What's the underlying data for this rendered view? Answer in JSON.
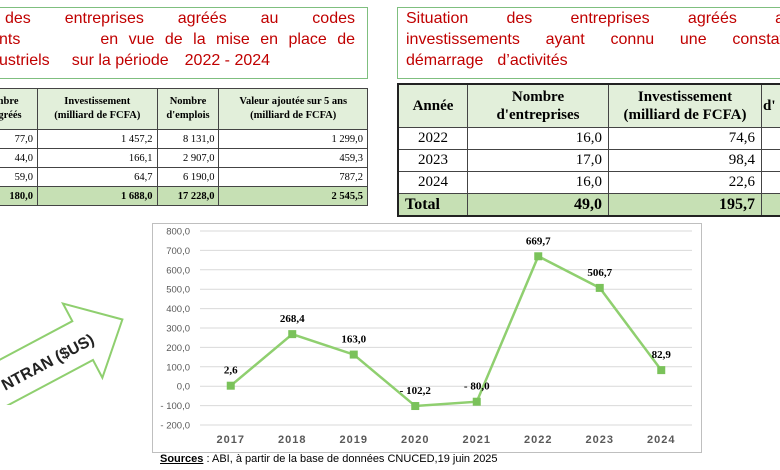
{
  "left_box": {
    "lines": [
      [
        "des",
        "entreprises",
        "agréés",
        "au",
        "codes"
      ],
      [
        "nts",
        "en vue de la mise en place de"
      ],
      [
        "ustriels",
        "sur la période",
        "2022 - 2024"
      ]
    ]
  },
  "right_box": {
    "lines": [
      [
        "Situation",
        "des",
        "entreprises",
        "agréés",
        "a"
      ],
      [
        "investissements",
        "ayant",
        "connu",
        "une",
        "constat"
      ],
      [
        "démarrage",
        "d’activités"
      ]
    ]
  },
  "left_table": {
    "headers": [
      "ombre\ns agréés",
      "Investissement\n(milliard de FCFA)",
      "Nombre\nd'emplois",
      "Valeur ajoutée sur 5 ans\n(milliard de FCFA)"
    ],
    "rows": [
      [
        "77,0",
        "1 457,2",
        "8 131,0",
        "1 299,0"
      ],
      [
        "44,0",
        "166,1",
        "2 907,0",
        "459,3"
      ],
      [
        "59,0",
        "64,7",
        "6 190,0",
        "787,2"
      ]
    ],
    "total": [
      "180,0",
      "1 688,0",
      "17 228,0",
      "2 545,5"
    ]
  },
  "right_table": {
    "headers": [
      "Année",
      "Nombre\nd'entreprises",
      "Investissement\n(milliard de FCFA)",
      "d'"
    ],
    "rows": [
      [
        "2022",
        "16,0",
        "74,6",
        ""
      ],
      [
        "2023",
        "17,0",
        "98,4",
        ""
      ],
      [
        "2024",
        "16,0",
        "22,6",
        ""
      ]
    ],
    "total": [
      "Total",
      "49,0",
      "195,7",
      ""
    ]
  },
  "arrow_text": "NTRAN ($US)",
  "chart_data": {
    "type": "line",
    "categories": [
      "2017",
      "2018",
      "2019",
      "2020",
      "2021",
      "2022",
      "2023",
      "2024"
    ],
    "values": [
      2.6,
      268.4,
      163.0,
      -102.2,
      -80.0,
      669.7,
      506.7,
      82.9
    ],
    "data_labels": [
      "2,6",
      "268,4",
      "163,0",
      "- 102,2",
      "- 80,0",
      "669,7",
      "506,7",
      "82,9"
    ],
    "yticks": [
      "800,0",
      "700,0",
      "600,0",
      "500,0",
      "400,0",
      "300,0",
      "200,0",
      "100,0",
      "0,0",
      "- 100,0",
      "- 200,0"
    ],
    "ylim": [
      -200,
      800
    ],
    "grid": true,
    "line_color": "#8fcf6f",
    "marker_color": "#7ac25a"
  },
  "source": {
    "label": "Sources",
    "text": " : ABI, à partir de la base de données CNUCED,19 juin 2025"
  }
}
